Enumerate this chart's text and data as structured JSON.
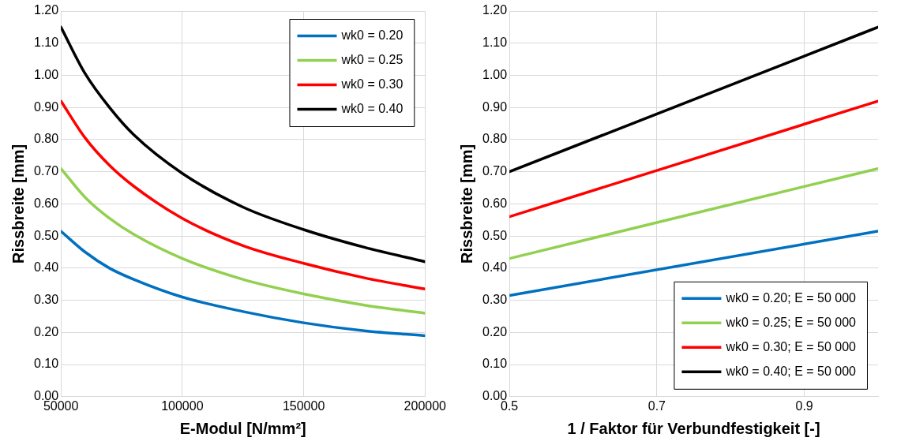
{
  "chart_data": [
    {
      "type": "line",
      "xlabel": "E-Modul [N/mm²]",
      "ylabel": "Rissbreite [mm]",
      "x": [
        50000,
        60000,
        70000,
        80000,
        100000,
        125000,
        150000,
        175000,
        200000
      ],
      "series": [
        {
          "name": "wk0 = 0.20",
          "color": "#0070c0",
          "values": [
            0.515,
            0.45,
            0.4,
            0.365,
            0.31,
            0.265,
            0.23,
            0.205,
            0.19
          ]
        },
        {
          "name": "wk0 = 0.25",
          "color": "#92d050",
          "values": [
            0.71,
            0.62,
            0.555,
            0.505,
            0.43,
            0.365,
            0.32,
            0.285,
            0.26
          ]
        },
        {
          "name": "wk0 = 0.30",
          "color": "#ff0000",
          "values": [
            0.92,
            0.805,
            0.72,
            0.655,
            0.555,
            0.47,
            0.415,
            0.37,
            0.335
          ]
        },
        {
          "name": "wk0 = 0.40",
          "color": "#000000",
          "values": [
            1.15,
            1.005,
            0.9,
            0.815,
            0.695,
            0.59,
            0.52,
            0.465,
            0.42
          ]
        }
      ],
      "xlim": [
        50000,
        200000
      ],
      "xticks": [
        50000,
        100000,
        150000,
        200000
      ],
      "ylim": [
        0,
        1.2
      ],
      "yticks": [
        {
          "value": 0,
          "label": "0.00"
        },
        {
          "value": 0.1,
          "label": "0.10"
        },
        {
          "value": 0.2,
          "label": "0.20"
        },
        {
          "value": 0.3,
          "label": "0.30"
        },
        {
          "value": 0.4,
          "label": "0.40"
        },
        {
          "value": 0.5,
          "label": "0.50"
        },
        {
          "value": 0.6,
          "label": "0.60"
        },
        {
          "value": 0.7,
          "label": "0.70"
        },
        {
          "value": 0.8,
          "label": "0.80"
        },
        {
          "value": 0.9,
          "label": "0.90"
        },
        {
          "value": 1.0,
          "label": "1.00"
        },
        {
          "value": 1.1,
          "label": "1.10"
        },
        {
          "value": 1.2,
          "label": "1.20"
        }
      ],
      "grid": true,
      "legend": "top right",
      "marker": "none",
      "line_style": "solid"
    },
    {
      "type": "line",
      "xlabel": "1 / Faktor für Verbundfestigkeit [-]",
      "ylabel": "Rissbreite [mm]",
      "x": [
        0.5,
        1.0
      ],
      "series": [
        {
          "name": "wk0 = 0.20; E = 50 000",
          "color": "#0070c0",
          "values": [
            0.315,
            0.515
          ]
        },
        {
          "name": "wk0 = 0.25; E = 50 000",
          "color": "#92d050",
          "values": [
            0.43,
            0.71
          ]
        },
        {
          "name": "wk0 = 0.30; E = 50 000",
          "color": "#ff0000",
          "values": [
            0.56,
            0.92
          ]
        },
        {
          "name": "wk0 = 0.40; E = 50 000",
          "color": "#000000",
          "values": [
            0.7,
            1.15
          ]
        }
      ],
      "xlim": [
        0.5,
        1.0
      ],
      "xticks": [
        0.5,
        0.7,
        0.9
      ],
      "ylim": [
        0,
        1.2
      ],
      "yticks": [
        {
          "value": 0,
          "label": "0.00"
        },
        {
          "value": 0.1,
          "label": "0.10"
        },
        {
          "value": 0.2,
          "label": "0.20"
        },
        {
          "value": 0.3,
          "label": "0.30"
        },
        {
          "value": 0.4,
          "label": "0.40"
        },
        {
          "value": 0.5,
          "label": "0.50"
        },
        {
          "value": 0.6,
          "label": "0.60"
        },
        {
          "value": 0.7,
          "label": "0.70"
        },
        {
          "value": 0.8,
          "label": "0.80"
        },
        {
          "value": 0.9,
          "label": "0.90"
        },
        {
          "value": 1.0,
          "label": "1.00"
        },
        {
          "value": 1.1,
          "label": "1.10"
        },
        {
          "value": 1.2,
          "label": "1.20"
        }
      ],
      "grid": true,
      "legend": "bottom right",
      "marker": "none",
      "line_style": "solid"
    }
  ]
}
